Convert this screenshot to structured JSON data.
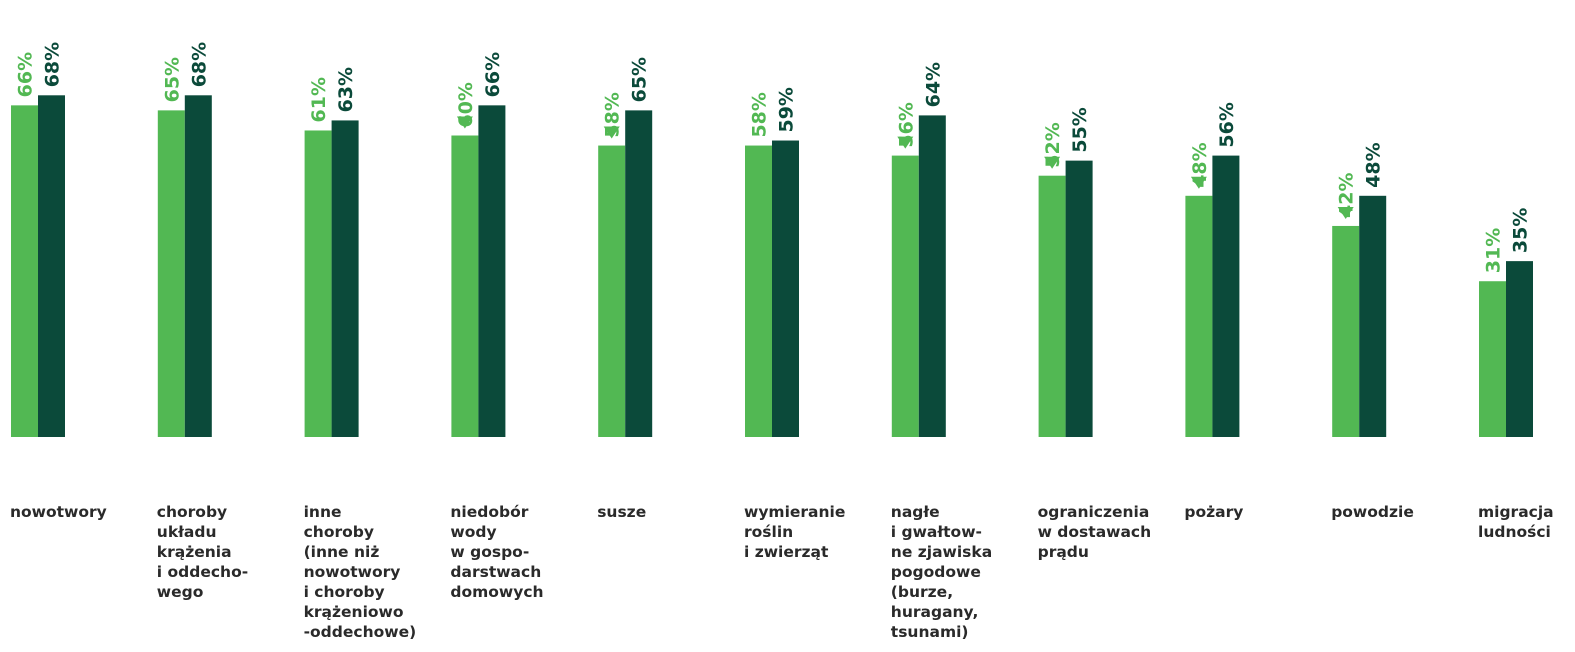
{
  "chart_data": {
    "type": "bar",
    "categories": [
      "nowotwory",
      "choroby\nukładu\nkrążenia\ni oddecho-\nwego",
      "inne\nchoroby\n(inne niż\nnowotwory\ni choroby\nkrążeniowo\n-oddechowe)",
      "niedobór\nwody\nw gospo-\ndarstwach\ndomowych",
      "susze",
      "wymieranie\nroślin\ni zwierząt",
      "nagłe\ni gwałtow-\nne zjawiska\npogodowe\n(burze,\nhuragany,\ntsunami)",
      "ograniczenia\nw dostawach\nprądu",
      "pożary",
      "powodzie",
      "migracja\nludności"
    ],
    "series": [
      {
        "values": [
          66,
          65,
          61,
          60,
          58,
          58,
          56,
          52,
          48,
          42,
          31
        ],
        "labels": [
          "66%",
          "65%",
          "61%",
          "60%",
          "58%",
          "58%",
          "56%",
          "52%",
          "48%",
          "42%",
          "31%"
        ],
        "color": "#52b853"
      },
      {
        "values": [
          68,
          68,
          63,
          66,
          65,
          59,
          64,
          55,
          56,
          48,
          35
        ],
        "labels": [
          "68%",
          "68%",
          "63%",
          "66%",
          "65%",
          "59%",
          "64%",
          "55%",
          "56%",
          "48%",
          "35%"
        ],
        "color": "#0b4a3a"
      }
    ],
    "down_markers": [
      false,
      false,
      false,
      true,
      true,
      false,
      true,
      true,
      true,
      true,
      false
    ],
    "marker_color": "#52b853",
    "label_text_color": "#2a2a2a",
    "grid": false,
    "legend": "none"
  }
}
